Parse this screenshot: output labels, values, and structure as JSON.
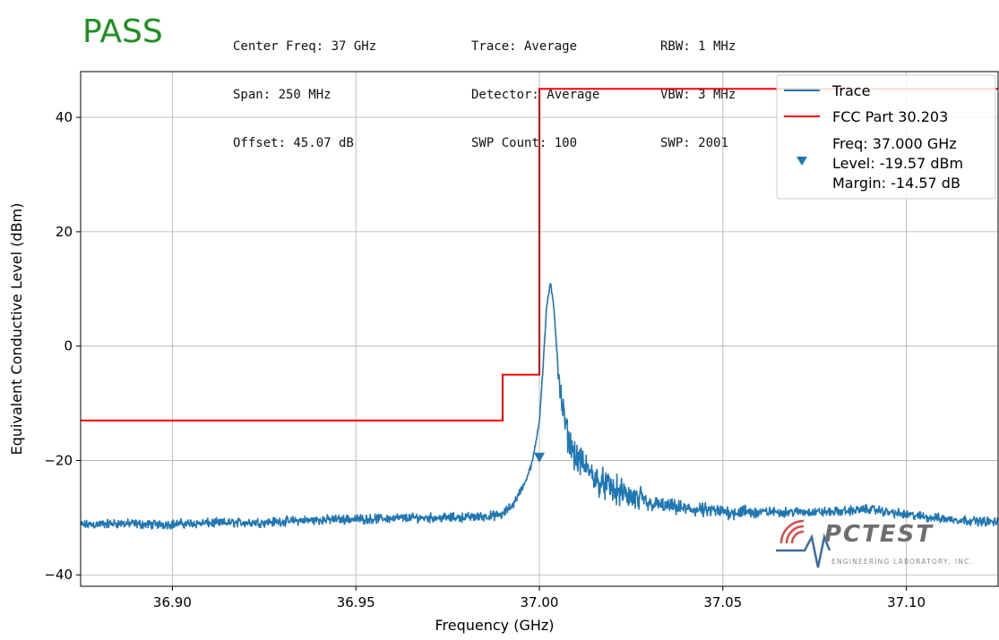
{
  "status": {
    "text": "PASS",
    "color": "#1f8f1f"
  },
  "settings": {
    "col1": [
      "Center Freq: 37 GHz",
      "Span: 250 MHz",
      "Offset: 45.07 dB"
    ],
    "col2": [
      "Trace: Average",
      "Detector: Average",
      "SWP Count: 100"
    ],
    "col3": [
      "RBW: 1 MHz",
      "VBW: 3 MHz",
      "SWP: 2001"
    ]
  },
  "logo": {
    "name": "PCTEST",
    "tagline": "ENGINEERING LABORATORY, INC.",
    "icon": "pctest-logo-icon"
  },
  "chart_data": {
    "type": "line",
    "xlabel": "Frequency (GHz)",
    "ylabel": "Equivalent Conductive Level (dBm)",
    "xlim": [
      36.875,
      37.125
    ],
    "ylim": [
      -42,
      48
    ],
    "xticks": [
      36.9,
      36.95,
      37.0,
      37.05,
      37.1
    ],
    "xtick_labels": [
      "36.90",
      "36.95",
      "37.00",
      "37.05",
      "37.10"
    ],
    "yticks": [
      -40,
      -20,
      0,
      20,
      40
    ],
    "ytick_labels": [
      "−40",
      "−20",
      "0",
      "20",
      "40"
    ],
    "grid": true,
    "legend_position": "top-right",
    "series": [
      {
        "name": "Trace",
        "color": "#1f77b4",
        "x": [
          36.875,
          36.885,
          36.895,
          36.905,
          36.915,
          36.925,
          36.935,
          36.945,
          36.955,
          36.965,
          36.975,
          36.985,
          36.99,
          36.993,
          36.996,
          36.998,
          36.999,
          37.0,
          37.001,
          37.002,
          37.003,
          37.004,
          37.005,
          37.006,
          37.008,
          37.01,
          37.013,
          37.016,
          37.02,
          37.025,
          37.03,
          37.04,
          37.05,
          37.06,
          37.07,
          37.08,
          37.09,
          37.1,
          37.11,
          37.125
        ],
        "y": [
          -31.3,
          -31.0,
          -31.2,
          -31.0,
          -30.9,
          -30.8,
          -30.5,
          -30.3,
          -30.2,
          -30.0,
          -30.0,
          -29.8,
          -29.5,
          -27.5,
          -24.0,
          -20.5,
          -17.0,
          -13.0,
          -3.5,
          7.0,
          11.0,
          6.5,
          -3.0,
          -10.0,
          -16.5,
          -19.5,
          -21.5,
          -23.5,
          -25.0,
          -26.5,
          -27.5,
          -28.5,
          -29.0,
          -29.0,
          -29.0,
          -29.0,
          -28.5,
          -29.5,
          -30.2,
          -30.8
        ]
      },
      {
        "name": "FCC Part 30.203",
        "color": "#ff0000",
        "x": [
          36.875,
          36.99,
          36.99,
          37.0,
          37.0,
          37.125
        ],
        "y": [
          -13,
          -13,
          -5,
          -5,
          45,
          45
        ]
      }
    ],
    "marker": {
      "name": "Freq: 37.000 GHz\nLevel: -19.57 dBm\nMargin: -14.57 dB",
      "lines": [
        "Freq: 37.000 GHz",
        "Level: -19.57 dBm",
        "Margin: -14.57 dB"
      ],
      "x": 37.0,
      "y": -19.57,
      "color": "#1f77b4",
      "symbol": "triangle-down"
    }
  }
}
